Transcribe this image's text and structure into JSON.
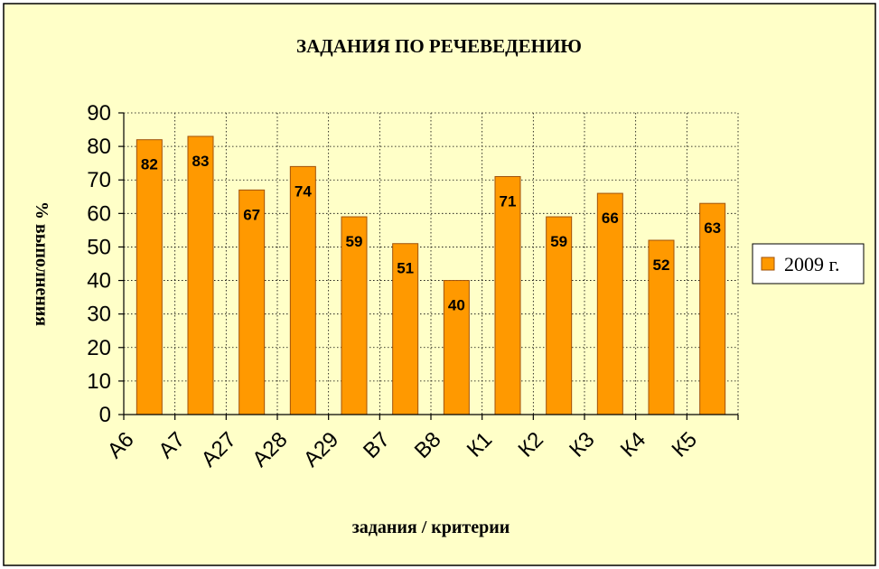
{
  "colors": {
    "background": "#FFFFC8",
    "bar_fill": "#FF9900",
    "bar_edge": "#A0520A",
    "grid": "#000000"
  },
  "chart_data": {
    "type": "bar",
    "title": "ЗАДАНИЯ ПО РЕЧЕВЕДЕНИЮ",
    "xlabel": "задания / критерии",
    "ylabel": "% выполнения",
    "categories": [
      "А6",
      "А7",
      "А27",
      "А28",
      "А29",
      "В7",
      "В8",
      "К1",
      "К2",
      "К3",
      "К4",
      "К5"
    ],
    "series": [
      {
        "name": "2009 г.",
        "values": [
          82,
          83,
          67,
          74,
          59,
          51,
          40,
          71,
          59,
          66,
          52,
          63
        ]
      }
    ],
    "ylim": [
      0,
      90
    ],
    "yticks": [
      0,
      10,
      20,
      30,
      40,
      50,
      60,
      70,
      80,
      90
    ],
    "grid": "dotted",
    "legend_position": "right",
    "data_labels": true
  }
}
